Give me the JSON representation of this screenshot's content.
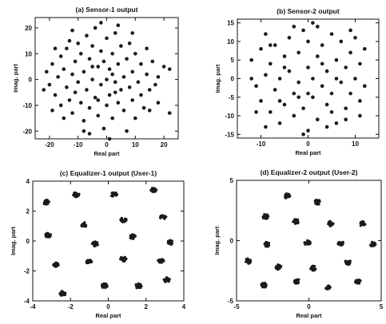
{
  "chart_data": [
    {
      "type": "scatter",
      "title": "(a) Sensor-1 output",
      "xlabel": "Real part",
      "ylabel": "Imag. part",
      "xlim": [
        -25,
        25
      ],
      "ylim": [
        -23,
        24
      ],
      "xticks": [
        -20,
        -10,
        0,
        10,
        20
      ],
      "yticks": [
        -20,
        -10,
        0,
        10,
        20
      ],
      "color": "#1a1a1a",
      "points": [
        [
          -21,
          3
        ],
        [
          -20,
          -2
        ],
        [
          -19,
          6
        ],
        [
          -18,
          -6
        ],
        [
          -17,
          1
        ],
        [
          -16,
          9
        ],
        [
          -16,
          -10
        ],
        [
          -15,
          4
        ],
        [
          -14,
          -3
        ],
        [
          -14,
          12
        ],
        [
          -13,
          -8
        ],
        [
          -12,
          2
        ],
        [
          -12,
          -13
        ],
        [
          -11,
          7
        ],
        [
          -11,
          -5
        ],
        [
          -10,
          14
        ],
        [
          -10,
          -1
        ],
        [
          -9,
          -9
        ],
        [
          -9,
          10
        ],
        [
          -8,
          3
        ],
        [
          -8,
          -16
        ],
        [
          -7,
          -4
        ],
        [
          -7,
          17
        ],
        [
          -6,
          8
        ],
        [
          -6,
          -11
        ],
        [
          -5,
          0
        ],
        [
          -5,
          13
        ],
        [
          -4,
          -7
        ],
        [
          -4,
          20
        ],
        [
          -3,
          5
        ],
        [
          -3,
          -14
        ],
        [
          -2,
          -2
        ],
        [
          -2,
          11
        ],
        [
          -1,
          -19
        ],
        [
          -1,
          7
        ],
        [
          0,
          0
        ],
        [
          0,
          -10
        ],
        [
          0,
          16
        ],
        [
          1,
          4
        ],
        [
          1,
          -6
        ],
        [
          2,
          -15
        ],
        [
          2,
          10
        ],
        [
          3,
          -1
        ],
        [
          3,
          18
        ],
        [
          4,
          6
        ],
        [
          4,
          -9
        ],
        [
          5,
          -4
        ],
        [
          5,
          13
        ],
        [
          6,
          1
        ],
        [
          6,
          -12
        ],
        [
          7,
          8
        ],
        [
          7,
          -20
        ],
        [
          8,
          -3
        ],
        [
          8,
          14
        ],
        [
          9,
          3
        ],
        [
          9,
          -8
        ],
        [
          10,
          -15
        ],
        [
          10,
          10
        ],
        [
          11,
          -1
        ],
        [
          12,
          6
        ],
        [
          12,
          -6
        ],
        [
          13,
          -11
        ],
        [
          14,
          2
        ],
        [
          14,
          12
        ],
        [
          15,
          -4
        ],
        [
          16,
          7
        ],
        [
          17,
          -2
        ],
        [
          18,
          -9
        ],
        [
          20,
          5
        ],
        [
          22,
          4
        ],
        [
          22,
          -13
        ],
        [
          -18,
          12
        ],
        [
          -15,
          -15
        ],
        [
          -13,
          15
        ],
        [
          -8,
          -20
        ],
        [
          -6,
          -21
        ],
        [
          1,
          -23
        ],
        [
          -2,
          22
        ],
        [
          4,
          21
        ],
        [
          -12,
          19
        ],
        [
          9,
          18
        ],
        [
          15,
          -12
        ],
        [
          -22,
          -4
        ],
        [
          -19,
          -12
        ],
        [
          18,
          1
        ],
        [
          -3,
          -8
        ],
        [
          3,
          -5
        ],
        [
          -5,
          5
        ],
        [
          2,
          2
        ]
      ]
    },
    {
      "type": "scatter",
      "title": "(b) Sensor-2 output",
      "xlabel": "Real part",
      "ylabel": "Imag. part",
      "xlim": [
        -15,
        15
      ],
      "ylim": [
        -16,
        16
      ],
      "xticks": [
        -10,
        0,
        10
      ],
      "yticks": [
        -15,
        -10,
        -5,
        0,
        5,
        10,
        15
      ],
      "color": "#1a1a1a",
      "points": [
        [
          -12,
          5
        ],
        [
          -11,
          -2
        ],
        [
          -10,
          8
        ],
        [
          -10,
          -6
        ],
        [
          -9,
          1
        ],
        [
          -9,
          12
        ],
        [
          -8,
          -9
        ],
        [
          -8,
          4
        ],
        [
          -7,
          -3
        ],
        [
          -7,
          9
        ],
        [
          -6,
          -12
        ],
        [
          -6,
          0
        ],
        [
          -5,
          6
        ],
        [
          -5,
          -7
        ],
        [
          -4,
          11
        ],
        [
          -4,
          2
        ],
        [
          -3,
          -4
        ],
        [
          -3,
          -10
        ],
        [
          -2,
          7
        ],
        [
          -2,
          -1
        ],
        [
          -1,
          13
        ],
        [
          -1,
          -8
        ],
        [
          0,
          3
        ],
        [
          0,
          -14
        ],
        [
          0,
          10
        ],
        [
          1,
          -5
        ],
        [
          1,
          0
        ],
        [
          2,
          14
        ],
        [
          2,
          -11
        ],
        [
          2,
          6
        ],
        [
          3,
          -2
        ],
        [
          3,
          9
        ],
        [
          4,
          -7
        ],
        [
          4,
          2
        ],
        [
          5,
          12
        ],
        [
          5,
          -4
        ],
        [
          6,
          -12
        ],
        [
          6,
          5
        ],
        [
          7,
          -1
        ],
        [
          7,
          10
        ],
        [
          8,
          -8
        ],
        [
          8,
          3
        ],
        [
          9,
          7
        ],
        [
          9,
          -4
        ],
        [
          10,
          0
        ],
        [
          10,
          11
        ],
        [
          11,
          -6
        ],
        [
          11,
          4
        ],
        [
          12,
          8
        ],
        [
          12,
          -2
        ],
        [
          -11,
          -9
        ],
        [
          -12,
          0
        ],
        [
          -3,
          14
        ],
        [
          1,
          15
        ],
        [
          -1,
          -15
        ],
        [
          4,
          -13
        ],
        [
          -9,
          -13
        ],
        [
          8,
          -11
        ],
        [
          11,
          -10
        ],
        [
          -5,
          3
        ],
        [
          5,
          -9
        ],
        [
          3,
          4
        ],
        [
          -2,
          -5
        ],
        [
          6,
          0
        ],
        [
          -8,
          9
        ],
        [
          9,
          13
        ],
        [
          -6,
          -6
        ],
        [
          0,
          -4
        ]
      ]
    },
    {
      "type": "scatter",
      "title": "(c) Equalizer-1 output (User-1)",
      "xlabel": "Real part",
      "ylabel": "Imag. part",
      "xlim": [
        -4,
        4
      ],
      "ylim": [
        -4,
        4
      ],
      "xticks": [
        -4,
        -2,
        0,
        2,
        4
      ],
      "yticks": [
        -4,
        -2,
        0,
        2,
        4
      ],
      "color": "#1a1a1a",
      "clusters": [
        [
          -3.3,
          2.6
        ],
        [
          -1.7,
          3.1
        ],
        [
          0.3,
          3.1
        ],
        [
          2.4,
          3.4
        ],
        [
          -1.3,
          1.1
        ],
        [
          0.8,
          1.4
        ],
        [
          2.9,
          1.6
        ],
        [
          -3.2,
          0.4
        ],
        [
          -0.7,
          -0.2
        ],
        [
          1.3,
          0.3
        ],
        [
          3.3,
          -0.1
        ],
        [
          -2.8,
          -1.6
        ],
        [
          -1.0,
          -1.4
        ],
        [
          0.8,
          -1.2
        ],
        [
          2.8,
          -1.3
        ],
        [
          -2.4,
          -3.5
        ],
        [
          -0.2,
          -3.0
        ],
        [
          1.6,
          -3.0
        ],
        [
          3.1,
          -2.6
        ]
      ]
    },
    {
      "type": "scatter",
      "title": "(d) Equalizer-2 output (User-2)",
      "xlabel": "Real part",
      "ylabel": "Imag. part",
      "xlim": [
        -5,
        5
      ],
      "ylim": [
        -5,
        5
      ],
      "xticks": [
        -5,
        0,
        5
      ],
      "yticks": [
        -5,
        0,
        5
      ],
      "color": "#1a1a1a",
      "clusters": [
        [
          -1.5,
          3.7
        ],
        [
          0.6,
          3.2
        ],
        [
          -3.0,
          2.0
        ],
        [
          -0.9,
          1.6
        ],
        [
          1.5,
          1.4
        ],
        [
          3.7,
          1.4
        ],
        [
          -2.9,
          -0.3
        ],
        [
          -0.1,
          -0.2
        ],
        [
          2.2,
          -0.2
        ],
        [
          4.4,
          -0.3
        ],
        [
          -4.2,
          -1.7
        ],
        [
          -2.1,
          -2.2
        ],
        [
          0.3,
          -2.3
        ],
        [
          2.7,
          -1.8
        ],
        [
          -3.1,
          -3.7
        ],
        [
          -0.8,
          -3.4
        ],
        [
          1.3,
          -3.9
        ],
        [
          3.4,
          -3.4
        ]
      ]
    }
  ]
}
